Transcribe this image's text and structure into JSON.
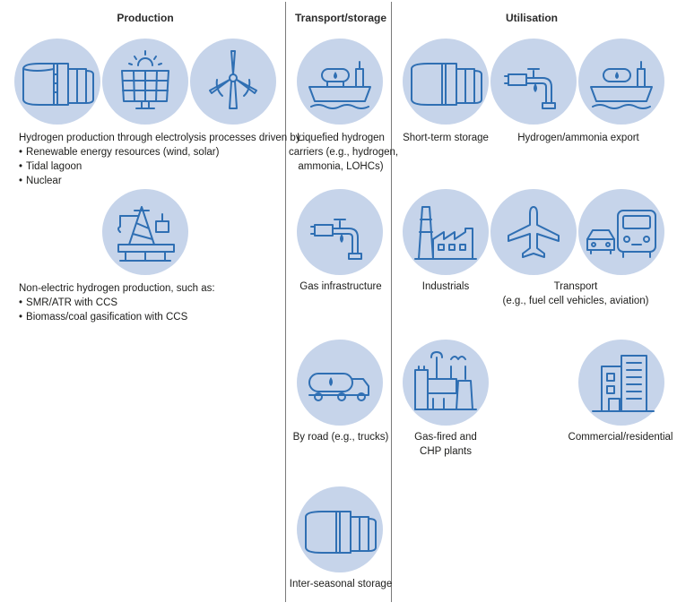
{
  "headers": {
    "production": "Production",
    "transport": "Transport/storage",
    "utilisation": "Utilisation"
  },
  "production": {
    "electric_intro": "Hydrogen production through electrolysis processes driven by:",
    "electric_items": [
      "Renewable energy resources (wind, solar)",
      "Tidal lagoon",
      "Nuclear"
    ],
    "nonelectric_intro": "Non-electric hydrogen production, such as:",
    "nonelectric_items": [
      "SMR/ATR with CCS",
      "Biomass/coal gasification with CCS"
    ]
  },
  "transport": {
    "carriers": [
      "Liquefied hydrogen",
      "carriers (e.g., hydrogen,",
      "ammonia, LOHCs)"
    ],
    "gas": "Gas infrastructure",
    "road": "By road (e.g., trucks)",
    "seasonal": "Inter-seasonal storage"
  },
  "utilisation": {
    "short_term": "Short-term storage",
    "export": "Hydrogen/ammonia export",
    "industrials": "Industrials",
    "transport": [
      "Transport",
      "(e.g., fuel cell vehicles, aviation)"
    ],
    "gas_fired": [
      "Gas-fired and",
      "CHP plants"
    ],
    "commercial": "Commercial/residential"
  },
  "colors": {
    "circle": "#c6d4ea",
    "icon": "#2f6fb3",
    "divider": "#7a7a7a"
  }
}
